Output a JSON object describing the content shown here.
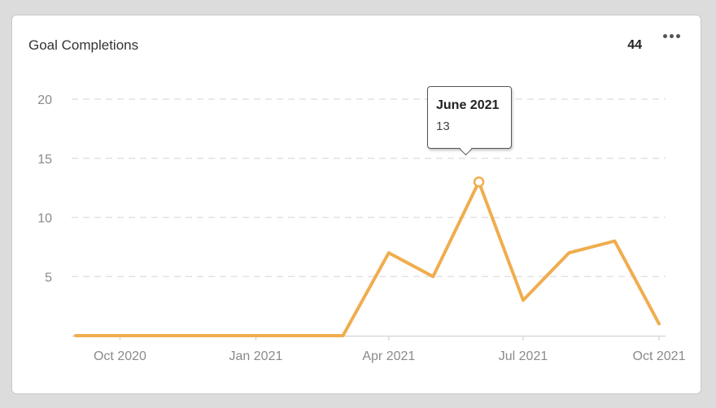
{
  "widget": {
    "title": "Goal Completions",
    "total": "44",
    "menu_icon": "more-horizontal-icon"
  },
  "tooltip": {
    "title": "June 2021",
    "value": "13"
  },
  "colors": {
    "line": "#f0ad4e",
    "grid": "#e2e2e2",
    "axis": "#cccccc",
    "tick_text": "#8a8a8a"
  },
  "chart_data": {
    "type": "line",
    "x": [
      "2020-09-01",
      "2020-10-01",
      "2020-11-01",
      "2020-12-01",
      "2021-01-01",
      "2021-02-01",
      "2021-03-01",
      "2021-04-01",
      "2021-05-01",
      "2021-06-01",
      "2021-07-01",
      "2021-08-01",
      "2021-09-01",
      "2021-10-01"
    ],
    "series": [
      {
        "values": [
          0,
          0,
          0,
          0,
          0,
          0,
          0,
          7,
          5,
          13,
          3,
          7,
          8,
          1
        ]
      }
    ],
    "x_ticks": [
      {
        "date": "2020-10-01",
        "label": "Oct 2020"
      },
      {
        "date": "2021-01-01",
        "label": "Jan 2021"
      },
      {
        "date": "2021-04-01",
        "label": "Apr 2021"
      },
      {
        "date": "2021-07-01",
        "label": "Jul 2021"
      },
      {
        "date": "2021-10-01",
        "label": "Oct 2021"
      }
    ],
    "y_ticks": [
      5,
      10,
      15,
      20
    ],
    "ylim": [
      0,
      20
    ],
    "grid": true,
    "highlighted_point": "2021-06-01"
  }
}
